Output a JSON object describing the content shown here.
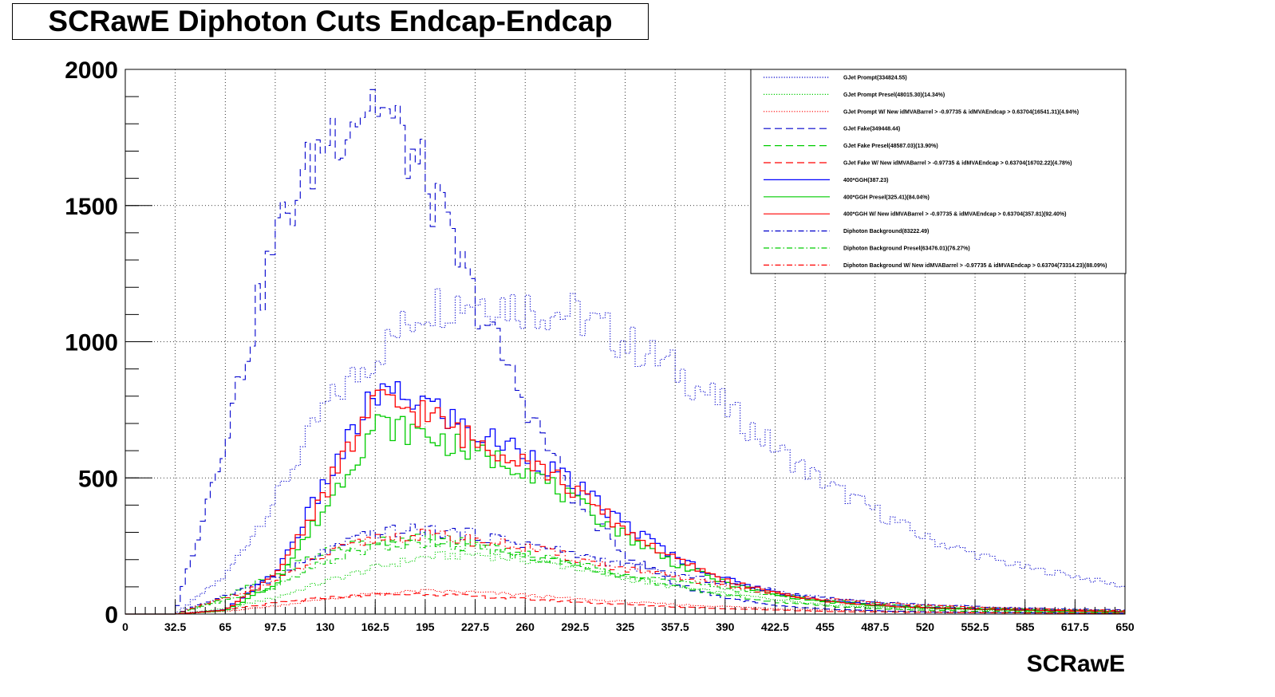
{
  "chart_data": {
    "type": "line",
    "title": "SCRawE Diphoton Cuts Endcap-Endcap",
    "xlabel": "SCRawE",
    "ylabel": "",
    "xlim": [
      0,
      650
    ],
    "ylim": [
      0,
      2000
    ],
    "grid": true,
    "legend_position": "top-right",
    "x_ticks": [
      "0",
      "32.5",
      "65",
      "97.5",
      "130",
      "162.5",
      "195",
      "227.5",
      "260",
      "292.5",
      "325",
      "357.5",
      "390",
      "422.5",
      "455",
      "487.5",
      "520",
      "552.5",
      "585",
      "617.5",
      "650"
    ],
    "y_ticks": [
      "0",
      "500",
      "1000",
      "1500",
      "2000"
    ],
    "x": [
      0,
      32.5,
      65,
      97.5,
      130,
      162.5,
      195,
      227.5,
      260,
      292.5,
      325,
      357.5,
      390,
      422.5,
      455,
      487.5,
      520,
      552.5,
      585,
      617.5,
      650
    ],
    "series": [
      {
        "name": "GJet Prompt(334824.55)",
        "color": "#0000cc",
        "style": "dotted",
        "values": [
          0,
          0,
          140,
          420,
          760,
          950,
          1130,
          1160,
          1130,
          1100,
          1000,
          900,
          760,
          610,
          480,
          380,
          280,
          220,
          170,
          140,
          100
        ]
      },
      {
        "name": "GJet Prompt Presel(48015.30)(14.34%)",
        "color": "#00cc00",
        "style": "dotted",
        "values": [
          0,
          0,
          20,
          60,
          120,
          170,
          210,
          220,
          200,
          170,
          130,
          100,
          75,
          55,
          35,
          25,
          20,
          15,
          12,
          10,
          8
        ]
      },
      {
        "name": "GJet Prompt W/ New idMVABarrel > -0.97735 & idMVAEndcap > 0.63704(16541.31)(4.94%)",
        "color": "#ff0000",
        "style": "dotted",
        "values": [
          0,
          0,
          10,
          30,
          55,
          75,
          85,
          80,
          70,
          55,
          45,
          35,
          28,
          20,
          15,
          12,
          9,
          7,
          5,
          4,
          3
        ]
      },
      {
        "name": "GJet Fake(349448.44)",
        "color": "#0000cc",
        "style": "dashed",
        "values": [
          0,
          0,
          650,
          1380,
          1750,
          1900,
          1600,
          1150,
          780,
          420,
          220,
          110,
          60,
          30,
          18,
          12,
          8,
          6,
          5,
          4,
          3
        ]
      },
      {
        "name": "GJet Fake Presel(48587.03)(13.90%)",
        "color": "#00cc00",
        "style": "dashed",
        "values": [
          0,
          0,
          60,
          150,
          230,
          270,
          280,
          260,
          220,
          180,
          140,
          100,
          70,
          45,
          30,
          20,
          14,
          10,
          8,
          6,
          5
        ]
      },
      {
        "name": "GJet Fake W/ New idMVABarrel > -0.97735 & idMVAEndcap > 0.63704(16702.22)(4.78%)",
        "color": "#ff0000",
        "style": "dashed",
        "values": [
          0,
          0,
          15,
          40,
          60,
          70,
          75,
          65,
          55,
          45,
          35,
          27,
          20,
          15,
          10,
          8,
          6,
          5,
          4,
          3,
          2
        ]
      },
      {
        "name": "400*GGH(387.23)",
        "color": "#0000ff",
        "style": "solid",
        "values": [
          0,
          0,
          15,
          150,
          480,
          810,
          780,
          660,
          600,
          470,
          330,
          210,
          130,
          80,
          50,
          35,
          25,
          20,
          16,
          12,
          10
        ]
      },
      {
        "name": "400*GGH Presel(325.41)(84.04%)",
        "color": "#00cc00",
        "style": "solid",
        "values": [
          0,
          0,
          12,
          110,
          390,
          700,
          660,
          590,
          540,
          410,
          290,
          185,
          115,
          70,
          45,
          30,
          22,
          17,
          13,
          10,
          8
        ]
      },
      {
        "name": "400*GGH W/ New idMVABarrel > -0.97735 & idMVAEndcap > 0.63704(357.81)(92.40%)",
        "color": "#ff0000",
        "style": "solid",
        "values": [
          0,
          0,
          14,
          140,
          450,
          780,
          740,
          630,
          580,
          450,
          310,
          200,
          125,
          75,
          48,
          33,
          24,
          18,
          15,
          11,
          9
        ]
      },
      {
        "name": "Diphoton Background(83222.49)",
        "color": "#0000cc",
        "style": "dashdot",
        "values": [
          0,
          0,
          70,
          130,
          230,
          300,
          310,
          290,
          260,
          220,
          180,
          145,
          115,
          85,
          60,
          45,
          35,
          28,
          22,
          18,
          15
        ]
      },
      {
        "name": "Diphoton Background Presel(63476.01)(76.27%)",
        "color": "#00cc00",
        "style": "dashdot",
        "values": [
          0,
          0,
          50,
          100,
          190,
          250,
          260,
          240,
          215,
          185,
          150,
          120,
          95,
          70,
          50,
          38,
          28,
          22,
          18,
          14,
          12
        ]
      },
      {
        "name": "Diphoton Background W/ New idMVABarrel > -0.97735 & idMVAEndcap > 0.63704(73314.23)(88.09%)",
        "color": "#ff0000",
        "style": "dashdot",
        "values": [
          0,
          0,
          60,
          120,
          215,
          280,
          290,
          270,
          245,
          205,
          165,
          135,
          105,
          78,
          55,
          42,
          32,
          25,
          20,
          16,
          13
        ]
      }
    ]
  }
}
